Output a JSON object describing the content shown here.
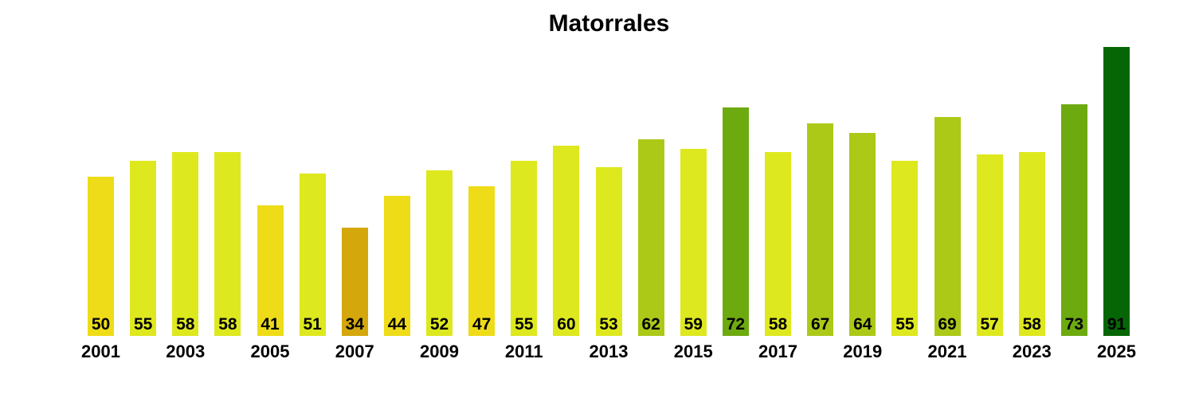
{
  "title": "Matorrales",
  "chart_data": {
    "type": "bar",
    "title": "Matorrales",
    "xlabel": "",
    "ylabel": "",
    "categories": [
      2001,
      2002,
      2003,
      2004,
      2005,
      2006,
      2007,
      2008,
      2009,
      2010,
      2011,
      2012,
      2013,
      2014,
      2015,
      2016,
      2017,
      2018,
      2019,
      2020,
      2021,
      2022,
      2023,
      2024,
      2025
    ],
    "values": [
      50,
      55,
      58,
      58,
      41,
      51,
      34,
      44,
      52,
      47,
      55,
      60,
      53,
      62,
      59,
      72,
      58,
      67,
      64,
      55,
      69,
      57,
      58,
      73,
      91
    ],
    "bar_value_labels_shown": true,
    "x_tick_labels": [
      "2001",
      "2003",
      "2005",
      "2007",
      "2009",
      "2011",
      "2013",
      "2015",
      "2017",
      "2019",
      "2021",
      "2023",
      "2025"
    ],
    "ylim": [
      0,
      91
    ],
    "grid": false,
    "legend": false,
    "axes_lines": false,
    "colors": {
      "background": "#FFFFFF",
      "text": "#000000",
      "value_color_bins": [
        {
          "max": 40,
          "color": "#D4A70C"
        },
        {
          "max": 50,
          "color": "#EEDC18"
        },
        {
          "max": 60,
          "color": "#DEE81E"
        },
        {
          "max": 70,
          "color": "#ACC918"
        },
        {
          "max": 80,
          "color": "#6DAA10"
        },
        {
          "max": 100,
          "color": "#066606"
        }
      ]
    }
  }
}
